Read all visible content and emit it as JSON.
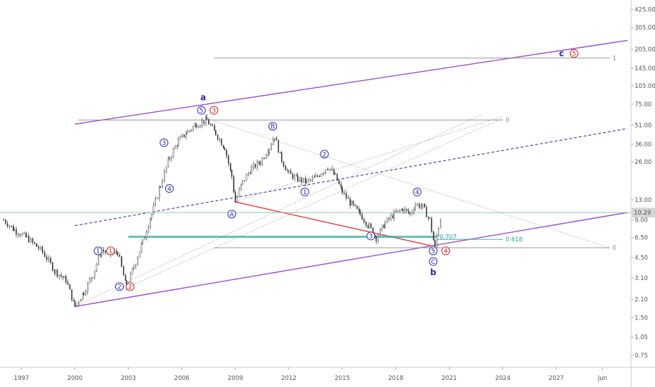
{
  "chart_data": {
    "type": "line",
    "title": "",
    "xlabel": "",
    "ylabel": "",
    "scale": "log",
    "grid": false,
    "x_ticks": [
      "1997",
      "2000",
      "2003",
      "2006",
      "2009",
      "2012",
      "2015",
      "2018",
      "2021",
      "2024",
      "2027",
      "Jun"
    ],
    "y_ticks": [
      "425.00",
      "305.00",
      "205.00",
      "145.00",
      "105.00",
      "75.00",
      "51.00",
      "36.00",
      "26.00",
      "13.00",
      "9.00",
      "6.50",
      "4.50",
      "3.10",
      "2.10",
      "1.50",
      "1.05",
      "0.75"
    ],
    "last_price": "10.29",
    "last_price_value": 10.29,
    "xlim": [
      1995.8,
      2031.2
    ],
    "ylim": [
      0.62,
      480
    ],
    "series": [
      {
        "x": [
          1996.0,
          1996.6,
          1997.3,
          1998.2,
          1998.9,
          1999.5,
          2000.0,
          2000.5,
          2001.0,
          2001.5,
          2001.9,
          2002.4,
          2002.9,
          2003.3,
          2003.8,
          2004.3,
          2004.8,
          2005.3,
          2005.8,
          2006.3,
          2006.8,
          2007.4,
          2007.9,
          2008.4,
          2008.8,
          2009.0,
          2009.4,
          2009.9,
          2010.4,
          2010.9,
          2011.2,
          2011.6,
          2012.0,
          2012.5,
          2013.0,
          2013.5,
          2014.2,
          2014.6,
          2015.0,
          2015.5,
          2016.0,
          2016.5,
          2016.9,
          2017.4,
          2017.9,
          2018.4,
          2018.8,
          2019.1,
          2019.5,
          2019.9,
          2020.2,
          2020.4,
          2020.6
        ],
        "y": [
          9.0,
          7.5,
          6.5,
          5.0,
          3.5,
          3.0,
          1.85,
          2.4,
          3.3,
          5.2,
          4.8,
          5.0,
          2.6,
          3.8,
          6.0,
          10.0,
          17.0,
          28.0,
          38.0,
          45.0,
          52.0,
          56.0,
          44.0,
          34.0,
          20.0,
          12.5,
          18.0,
          23.0,
          26.0,
          34.0,
          42.0,
          27.0,
          21.0,
          19.0,
          18.0,
          19.5,
          24.0,
          20.0,
          15.0,
          12.0,
          10.0,
          8.0,
          6.5,
          8.5,
          10.0,
          11.0,
          10.0,
          12.0,
          11.5,
          9.0,
          5.4,
          8.0,
          10.29
        ]
      }
    ],
    "trendlines": [
      {
        "name": "upper-channel",
        "x": [
          2000.0,
          2031.0
        ],
        "y": [
          52.0,
          241.0
        ],
        "color": "#9c4dcc",
        "style": "solid"
      },
      {
        "name": "lower-channel",
        "x": [
          2000.0,
          2031.0
        ],
        "y": [
          1.84,
          10.3
        ],
        "color": "#9c4dcc",
        "style": "solid"
      },
      {
        "name": "mid-channel",
        "x": [
          2000.0,
          2031.0
        ],
        "y": [
          8.1,
          48.0
        ],
        "color": "#4545b0",
        "style": "dashed"
      },
      {
        "name": "red-line",
        "x": [
          2009.0,
          2020.0
        ],
        "y": [
          12.5,
          5.6
        ],
        "color": "#e04040",
        "style": "solid"
      }
    ],
    "horizontal_levels": [
      {
        "label": "1",
        "value": 175,
        "x_start": 2007.8,
        "x_end": 2030.0
      },
      {
        "label": "0",
        "value": 56,
        "x_start": 2000.2,
        "x_end": 2024.0
      },
      {
        "label": "0",
        "value": 5.4,
        "x_start": 2007.8,
        "x_end": 2030.0
      },
      {
        "label": "0.707",
        "value": 6.6,
        "x_start": 2003.0,
        "x_end": 2020.3
      },
      {
        "label": "0.618",
        "value": 6.3,
        "x_start": 2020.3,
        "x_end": 2024.0
      }
    ],
    "wave_labels": [
      {
        "text": "1",
        "color": "#2a2ab0",
        "x": 2001.3,
        "y": 5.1
      },
      {
        "text": "1",
        "color": "#cc2222",
        "x": 2002.0,
        "y": 5.1
      },
      {
        "text": "2",
        "color": "#2a2ab0",
        "x": 2002.5,
        "y": 2.65
      },
      {
        "text": "2",
        "color": "#cc2222",
        "x": 2003.1,
        "y": 2.65
      },
      {
        "text": "3",
        "color": "#2a2ab0",
        "x": 2005.0,
        "y": 37.0
      },
      {
        "text": "4",
        "color": "#2a2ab0",
        "x": 2005.3,
        "y": 16.0
      },
      {
        "text": "5",
        "color": "#2a2ab0",
        "x": 2007.1,
        "y": 67.0
      },
      {
        "text": "3",
        "color": "#cc2222",
        "x": 2007.8,
        "y": 67.0
      },
      {
        "text": "A",
        "color": "#2a2ab0",
        "x": 2008.8,
        "y": 10.0
      },
      {
        "text": "B",
        "color": "#2a2ab0",
        "x": 2011.1,
        "y": 50.0
      },
      {
        "text": "1",
        "color": "#2a2ab0",
        "x": 2012.9,
        "y": 15.0
      },
      {
        "text": "2",
        "color": "#2a2ab0",
        "x": 2014.0,
        "y": 30.0
      },
      {
        "text": "3",
        "color": "#2a2ab0",
        "x": 2016.6,
        "y": 6.7
      },
      {
        "text": "4",
        "color": "#2a2ab0",
        "x": 2019.2,
        "y": 15.0
      },
      {
        "text": "5",
        "color": "#2a2ab0",
        "x": 2020.1,
        "y": 5.1
      },
      {
        "text": "4",
        "color": "#cc2222",
        "x": 2020.8,
        "y": 5.1
      },
      {
        "text": "C",
        "color": "#2a2ab0",
        "x": 2020.1,
        "y": 4.2
      },
      {
        "text": "5",
        "color": "#cc2222",
        "x": 2028.0,
        "y": 190.0
      }
    ],
    "degree_labels": [
      {
        "text": "a",
        "x": 2007.2,
        "y": 85.0
      },
      {
        "text": "b",
        "x": 2020.1,
        "y": 3.45
      },
      {
        "text": "c",
        "x": 2027.3,
        "y": 190.0
      }
    ]
  },
  "colors": {
    "candle": "#333333",
    "channel": "#9c4dcc",
    "mid_channel": "#4545b0",
    "red_line": "#e04040",
    "fib_green": "#26a69a",
    "level_gray": "#888888",
    "wave_blue": "#2a2ab0",
    "wave_red": "#cc2222",
    "last_price_line": "#7bc0a0",
    "last_price_bg": "#d6d6d6"
  }
}
